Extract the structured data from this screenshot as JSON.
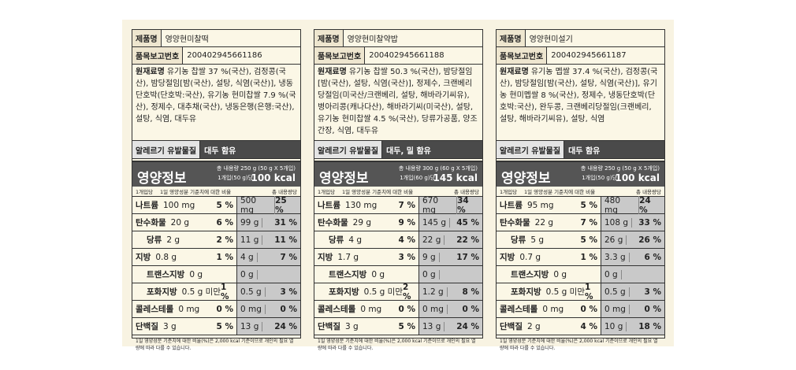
{
  "labels": [
    {
      "product_name": {
        "label": "제품명",
        "value": "영양현미찰떡"
      },
      "report_no": {
        "label": "품목보고번호",
        "value": "200402945661186"
      },
      "ingredients": {
        "label": "원재료명",
        "value": "유기농 찹쌀 37 %(국산), 검정콩(국산), 밤당절임[밤(국산), 설탕, 식염(국산)], 냉동단호박(단호박:국산), 유기농 현미찹쌀 7.9 %(국산), 정제수, 대추채(국산), 냉동은행(은행:국산), 설탕, 식염, 대두유"
      },
      "allergy": {
        "label": "알레르기 유발물질",
        "value": "대두 함유"
      },
      "nutrition": {
        "title": "영양정보",
        "total": "총 내용량 250 g (50 g X 5개입)",
        "per": "1개입(50 g)당",
        "kcal": "100 kcal",
        "head_left": "1개입당",
        "head_mid": "1일 영양성분 기준치에 대한 비율",
        "head_right": "총 내용량당",
        "rows": [
          {
            "name": "나트륨",
            "amount": "100 mg",
            "pct": "5 %",
            "total_amount": "500 mg",
            "total_pct": "25 %"
          },
          {
            "name": "탄수화물",
            "amount": "20 g",
            "pct": "6 %",
            "total_amount": "99 g",
            "total_pct": "31 %"
          },
          {
            "name": "당류",
            "amount": "2 g",
            "pct": "2 %",
            "total_amount": "11 g",
            "total_pct": "11 %"
          },
          {
            "name": "지방",
            "amount": "0.8 g",
            "pct": "1 %",
            "total_amount": "4 g",
            "total_pct": "7 %"
          },
          {
            "name": "트랜스지방",
            "amount": "0 g",
            "total_amount": "0 g"
          },
          {
            "name": "포화지방",
            "amount": "0.5 g 미만",
            "pct": "1 %",
            "total_amount": "0.5 g",
            "total_pct": "3 %"
          },
          {
            "name": "콜레스테롤",
            "amount": "0 mg",
            "pct": "0 %",
            "total_amount": "0 mg",
            "total_pct": "0 %"
          },
          {
            "name": "단백질",
            "amount": "3 g",
            "pct": "5 %",
            "total_amount": "13 g",
            "total_pct": "24 %"
          }
        ],
        "footnote": "1일 영양성분 기준치에 대한 비율(%)은 2,000 kcal 기준이므로 개인의 필요 열량에 따라 다를 수 있습니다."
      }
    },
    {
      "product_name": {
        "label": "제품명",
        "value": "영양현미찰약밥"
      },
      "report_no": {
        "label": "품목보고번호",
        "value": "200402945661188"
      },
      "ingredients": {
        "label": "원재료명",
        "value": "유기농 찹쌀 50.3 %(국산), 밤당절임[밤(국산), 설탕, 식염(국산)], 정제수, 크랜베리당절임(미국산/크랜베리, 설탕, 해바라기씨유), 병아리콩(캐나다산), 해바라기씨(미국산), 설탕, 유기농 현미찹쌀 4.5 %(국산), 당류가공품, 양조간장, 식염, 대두유"
      },
      "allergy": {
        "label": "알레르기 유발물질",
        "value": "대두, 밀 함유"
      },
      "nutrition": {
        "title": "영양정보",
        "total": "총 내용량 300 g (60 g X 5개입)",
        "per": "1개입(60 g)당",
        "kcal": "145 kcal",
        "head_left": "1개입당",
        "head_mid": "1일 영양성분 기준치에 대한 비율",
        "head_right": "총 내용량당",
        "rows": [
          {
            "name": "나트륨",
            "amount": "130 mg",
            "pct": "7 %",
            "total_amount": "670 mg",
            "total_pct": "34 %"
          },
          {
            "name": "탄수화물",
            "amount": "29 g",
            "pct": "9 %",
            "total_amount": "145 g",
            "total_pct": "45 %"
          },
          {
            "name": "당류",
            "amount": "4 g",
            "pct": "4 %",
            "total_amount": "22 g",
            "total_pct": "22 %"
          },
          {
            "name": "지방",
            "amount": "1.7 g",
            "pct": "3 %",
            "total_amount": "9 g",
            "total_pct": "17 %"
          },
          {
            "name": "트랜스지방",
            "amount": "0 g",
            "total_amount": "0 g"
          },
          {
            "name": "포화지방",
            "amount": "0.5 g 미만",
            "pct": "2 %",
            "total_amount": "1.2 g",
            "total_pct": "8 %"
          },
          {
            "name": "콜레스테롤",
            "amount": "0 mg",
            "pct": "0 %",
            "total_amount": "0 mg",
            "total_pct": "0 %"
          },
          {
            "name": "단백질",
            "amount": "3 g",
            "pct": "5 %",
            "total_amount": "13 g",
            "total_pct": "24 %"
          }
        ],
        "footnote": "1일 영양성분 기준치에 대한 비율(%)은 2,000 kcal 기준이므로 개인의 필요 열량에 따라 다를 수 있습니다."
      }
    },
    {
      "product_name": {
        "label": "제품명",
        "value": "영양현미설기"
      },
      "report_no": {
        "label": "품목보고번호",
        "value": "200402945661187"
      },
      "ingredients": {
        "label": "원재료명",
        "value": "유기농 멥쌀 37.4 %(국산), 검정콩(국산), 밤당절임[밤(국산), 설탕, 식염(국산)], 유기농 현미멥쌀 8 %(국산), 정제수, 냉동단호박(단호박:국산), 완두콩, 크랜베리당절임(크랜베리, 설탕, 해바라기씨유), 설탕, 식염"
      },
      "allergy": {
        "label": "알레르기 유발물질",
        "value": "대두 함유"
      },
      "nutrition": {
        "title": "영양정보",
        "total": "총 내용량 250 g (50 g X 5개입)",
        "per": "1개입(50 g)당",
        "kcal": "100 kcal",
        "head_left": "1개입당",
        "head_mid": "1일 영양성분 기준치에 대한 비율",
        "head_right": "총 내용량당",
        "rows": [
          {
            "name": "나트륨",
            "amount": "95 mg",
            "pct": "5 %",
            "total_amount": "480 mg",
            "total_pct": "24 %"
          },
          {
            "name": "탄수화물",
            "amount": "22 g",
            "pct": "7 %",
            "total_amount": "108 g",
            "total_pct": "33 %"
          },
          {
            "name": "당류",
            "amount": "5 g",
            "pct": "5 %",
            "total_amount": "26 g",
            "total_pct": "26 %"
          },
          {
            "name": "지방",
            "amount": "0.7 g",
            "pct": "1 %",
            "total_amount": "3.3 g",
            "total_pct": "6 %"
          },
          {
            "name": "트랜스지방",
            "amount": "0 g",
            "total_amount": "0 g"
          },
          {
            "name": "포화지방",
            "amount": "0.5 g 미만",
            "pct": "1 %",
            "total_amount": "0.5 g",
            "total_pct": "3 %"
          },
          {
            "name": "콜레스테롤",
            "amount": "0 mg",
            "pct": "0 %",
            "total_amount": "0 mg",
            "total_pct": "0 %"
          },
          {
            "name": "단백질",
            "amount": "2 g",
            "pct": "4 %",
            "total_amount": "10 g",
            "total_pct": "18 %"
          }
        ],
        "footnote": "1일 영양성분 기준치에 대한 비율(%)은 2,000 kcal 기준이므로 개인의 필요 열량에 따라 다를 수 있습니다."
      }
    }
  ]
}
